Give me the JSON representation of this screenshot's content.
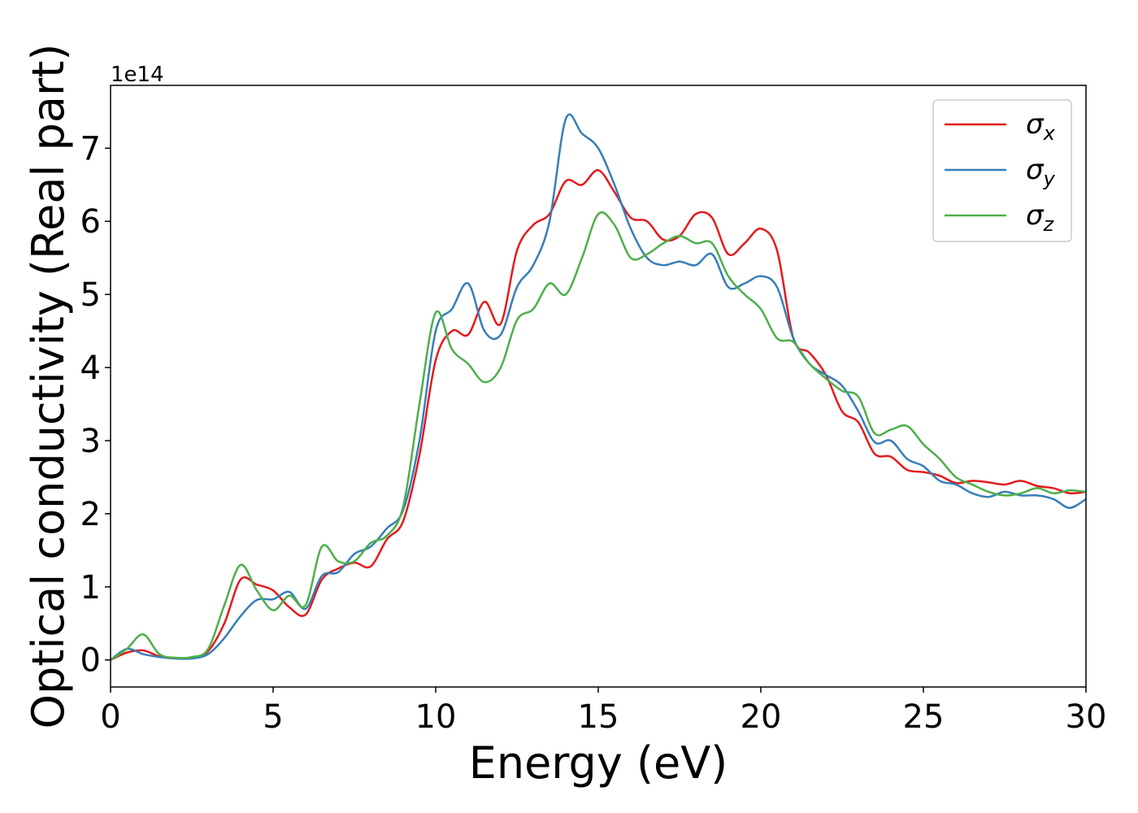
{
  "chart_data": {
    "type": "line",
    "x_label": "Energy (eV)",
    "y_label": "Optical conductivity (Real part)",
    "y_offset_label": "1e14",
    "xlim": [
      0,
      30
    ],
    "xticks": [
      0,
      5,
      10,
      15,
      20,
      25,
      30
    ],
    "ylim": [
      -0.37,
      7.86
    ],
    "yticks": [
      0,
      1,
      2,
      3,
      4,
      5,
      6,
      7
    ],
    "grid": false,
    "legend": "upper right",
    "x": [
      0,
      0.5,
      1,
      1.5,
      2,
      2.5,
      3,
      3.5,
      4,
      4.5,
      5,
      5.5,
      6,
      6.5,
      7,
      7.5,
      8,
      8.5,
      9,
      9.5,
      10,
      10.5,
      11,
      11.5,
      12,
      12.5,
      13,
      13.5,
      14,
      14.5,
      15,
      15.5,
      16,
      16.5,
      17,
      17.5,
      18,
      18.5,
      19,
      19.5,
      20,
      20.5,
      21,
      21.5,
      22,
      22.5,
      23,
      23.5,
      24,
      24.5,
      25,
      25.5,
      26,
      26.5,
      27,
      27.5,
      28,
      28.5,
      29,
      29.5,
      30
    ],
    "series": [
      {
        "name": "σx",
        "color": "#e41a1c",
        "values": [
          0,
          0.1,
          0.13,
          0.05,
          0.02,
          0.03,
          0.12,
          0.5,
          1.1,
          1.03,
          0.95,
          0.72,
          0.62,
          1.1,
          1.25,
          1.33,
          1.28,
          1.65,
          1.9,
          2.8,
          4.1,
          4.5,
          4.45,
          4.9,
          4.6,
          5.6,
          5.95,
          6.1,
          6.55,
          6.5,
          6.7,
          6.4,
          6.05,
          6.0,
          5.75,
          5.8,
          6.1,
          6.05,
          5.55,
          5.7,
          5.9,
          5.6,
          4.4,
          4.2,
          3.9,
          3.4,
          3.25,
          2.82,
          2.78,
          2.6,
          2.57,
          2.52,
          2.42,
          2.45,
          2.43,
          2.4,
          2.45,
          2.38,
          2.35,
          2.28,
          2.3
        ]
      },
      {
        "name": "σy",
        "color": "#377eb8",
        "values": [
          0,
          0.15,
          0.08,
          0.04,
          0.02,
          0.02,
          0.08,
          0.3,
          0.6,
          0.82,
          0.83,
          0.93,
          0.7,
          1.15,
          1.2,
          1.45,
          1.55,
          1.8,
          2.05,
          3.0,
          4.5,
          4.8,
          5.15,
          4.5,
          4.45,
          5.1,
          5.4,
          6.0,
          7.4,
          7.2,
          7.0,
          6.5,
          5.9,
          5.5,
          5.4,
          5.45,
          5.4,
          5.55,
          5.1,
          5.15,
          5.25,
          5.1,
          4.4,
          4.05,
          3.9,
          3.75,
          3.4,
          2.98,
          3.0,
          2.75,
          2.65,
          2.45,
          2.4,
          2.28,
          2.23,
          2.3,
          2.25,
          2.25,
          2.2,
          2.08,
          2.2
        ]
      },
      {
        "name": "σz",
        "color": "#4daf4a",
        "values": [
          0,
          0.15,
          0.35,
          0.08,
          0.03,
          0.04,
          0.15,
          0.75,
          1.3,
          0.95,
          0.68,
          0.88,
          0.75,
          1.55,
          1.35,
          1.35,
          1.6,
          1.7,
          2.1,
          3.5,
          4.75,
          4.25,
          4.05,
          3.8,
          4.0,
          4.65,
          4.8,
          5.15,
          5.0,
          5.5,
          6.1,
          5.95,
          5.5,
          5.55,
          5.7,
          5.8,
          5.7,
          5.7,
          5.25,
          5.0,
          4.8,
          4.4,
          4.35,
          4.05,
          3.85,
          3.68,
          3.6,
          3.1,
          3.15,
          3.2,
          2.95,
          2.75,
          2.5,
          2.4,
          2.3,
          2.25,
          2.28,
          2.35,
          2.28,
          2.32,
          2.3
        ]
      }
    ]
  }
}
